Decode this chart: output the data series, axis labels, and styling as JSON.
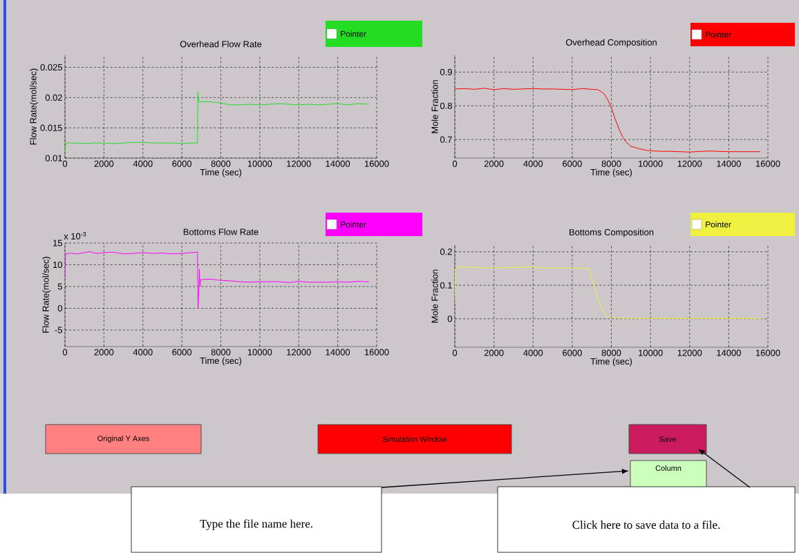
{
  "chart_data": [
    {
      "type": "line",
      "title": "Overhead Flow Rate",
      "xlabel": "Time (sec)",
      "ylabel": "Flow Rate(mol/sec)",
      "xlim": [
        0,
        16000
      ],
      "ylim": [
        0.01,
        0.027
      ],
      "xticks": [
        0,
        2000,
        4000,
        6000,
        8000,
        10000,
        12000,
        14000,
        16000
      ],
      "yticks": [
        0.01,
        0.015,
        0.02,
        0.025
      ],
      "grid": true,
      "annotations": [
        "Pointer"
      ],
      "x": [
        0,
        50,
        500,
        1000,
        1500,
        2000,
        2500,
        3000,
        3500,
        4000,
        4500,
        5000,
        5500,
        6000,
        6500,
        6800,
        6820,
        6880,
        7200,
        7500,
        8000,
        8500,
        9000,
        9500,
        10000,
        10500,
        11000,
        11500,
        12000,
        12500,
        13000,
        13500,
        14000,
        14500,
        15000,
        15600
      ],
      "series": [
        {
          "color": "#22dd22",
          "values": [
            0.011,
            0.0125,
            0.0125,
            0.0124,
            0.0125,
            0.0125,
            0.0124,
            0.0125,
            0.0126,
            0.0126,
            0.0125,
            0.0125,
            0.0125,
            0.0124,
            0.0125,
            0.0125,
            0.0209,
            0.0193,
            0.0193,
            0.0193,
            0.0191,
            0.0188,
            0.0188,
            0.0189,
            0.0188,
            0.0189,
            0.019,
            0.0189,
            0.0188,
            0.0189,
            0.0188,
            0.0189,
            0.019,
            0.0188,
            0.019,
            0.0189
          ]
        }
      ]
    },
    {
      "type": "line",
      "title": "Overhead Composition",
      "xlabel": "Time (sec)",
      "ylabel": "Mole Fraction",
      "xlim": [
        0,
        16000
      ],
      "ylim": [
        0.645,
        0.95
      ],
      "xticks": [
        0,
        2000,
        4000,
        6000,
        8000,
        10000,
        12000,
        14000,
        16000
      ],
      "yticks": [
        0.7,
        0.8,
        0.9
      ],
      "grid": true,
      "annotations": [
        "Pointer"
      ],
      "x": [
        0,
        500,
        1000,
        1500,
        2000,
        2500,
        3000,
        3500,
        4000,
        4500,
        5000,
        5500,
        6000,
        6500,
        7000,
        7300,
        7600,
        7800,
        8000,
        8200,
        8400,
        8600,
        8800,
        9000,
        9400,
        9800,
        10200,
        10600,
        11000,
        12000,
        13000,
        14000,
        15000,
        15600
      ],
      "series": [
        {
          "color": "#ff0000",
          "values": [
            0.85,
            0.851,
            0.849,
            0.852,
            0.848,
            0.851,
            0.849,
            0.85,
            0.851,
            0.85,
            0.85,
            0.849,
            0.848,
            0.851,
            0.849,
            0.848,
            0.838,
            0.82,
            0.795,
            0.76,
            0.73,
            0.705,
            0.69,
            0.68,
            0.673,
            0.668,
            0.666,
            0.665,
            0.665,
            0.663,
            0.666,
            0.664,
            0.664,
            0.664
          ]
        }
      ]
    },
    {
      "type": "line",
      "title": "Bottoms Flow Rate",
      "xlabel": "Time (sec)",
      "ylabel": "Flow Rate(mol/sec)",
      "xlim": [
        0,
        16000
      ],
      "ylim": [
        -8.8,
        15
      ],
      "xticks": [
        0,
        2000,
        4000,
        6000,
        8000,
        10000,
        12000,
        14000,
        16000
      ],
      "yticks": [
        -5,
        0,
        5,
        10,
        15
      ],
      "grid": true,
      "annotations": [
        "Pointer",
        "x 10$^{-3}$"
      ],
      "x": [
        0,
        30,
        300,
        600,
        1000,
        1300,
        1600,
        2000,
        2500,
        3000,
        3500,
        4000,
        4500,
        5000,
        5500,
        6000,
        6500,
        6800,
        6830,
        6880,
        6900,
        6930,
        6960,
        7000,
        7500,
        8000,
        8500,
        9000,
        9500,
        10000,
        10500,
        11000,
        11500,
        12000,
        12500,
        13000,
        13500,
        14000,
        14500,
        15000,
        15600
      ],
      "series": [
        {
          "color": "#ff00ff",
          "values": [
            7,
            12.5,
            12.7,
            12.5,
            12.8,
            13,
            12.6,
            12.8,
            12.9,
            12.5,
            12.6,
            12.8,
            12.6,
            12.7,
            12.5,
            12.6,
            12.8,
            12.9,
            0,
            5,
            9,
            5,
            6.5,
            6.6,
            6.7,
            6.4,
            6.3,
            6.1,
            6.0,
            6.1,
            6.1,
            6.1,
            5.9,
            6.2,
            6.0,
            6.0,
            6.0,
            6.1,
            6.0,
            6.2,
            6.1
          ]
        }
      ]
    },
    {
      "type": "line",
      "title": "Bottoms Composition",
      "xlabel": "Time (sec)",
      "ylabel": "Mole Fraction",
      "xlim": [
        0,
        16000
      ],
      "ylim": [
        -0.085,
        0.22
      ],
      "xticks": [
        0,
        2000,
        4000,
        6000,
        8000,
        10000,
        12000,
        14000,
        16000
      ],
      "yticks": [
        0,
        0.1,
        0.2
      ],
      "grid": true,
      "annotations": [
        "Pointer"
      ],
      "x": [
        0,
        30,
        300,
        1000,
        2000,
        3000,
        3800,
        4500,
        5500,
        6500,
        6850,
        7000,
        7200,
        7400,
        7600,
        7800,
        8000,
        8500,
        10000,
        12000,
        14000,
        15700
      ],
      "series": [
        {
          "color": "#f0f040",
          "values": [
            0.05,
            0.15,
            0.155,
            0.153,
            0.152,
            0.153,
            0.155,
            0.152,
            0.152,
            0.151,
            0.15,
            0.12,
            0.08,
            0.045,
            0.02,
            0.008,
            0.003,
            0.002,
            0.001,
            0.001,
            0.001,
            0.001
          ]
        }
      ]
    },
    {
      "type": "other",
      "annotations": [
        "Original Y Axes",
        "Simulation Window",
        "Save",
        "Column",
        "Type the file name here.",
        "Click here to save data to a file."
      ]
    }
  ]
}
